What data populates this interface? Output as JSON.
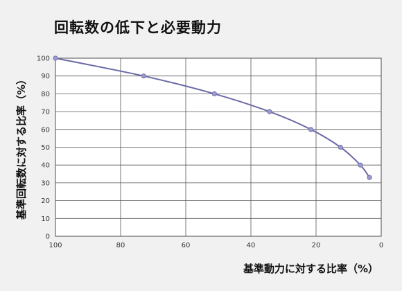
{
  "chart_data": {
    "type": "line",
    "title": "回転数の低下と必要動力",
    "xlabel": "基準動力に対する比率（%）",
    "ylabel": "基準回転数に対する比率（%）",
    "xlim": [
      100,
      0
    ],
    "ylim": [
      0,
      100
    ],
    "x_reversed": true,
    "x_ticks": [
      100,
      80,
      60,
      40,
      20,
      0
    ],
    "y_ticks": [
      0,
      10,
      20,
      30,
      40,
      50,
      60,
      70,
      80,
      90,
      100
    ],
    "grid": true,
    "series": [
      {
        "color": "#6b6aa6",
        "points": [
          {
            "x": 100,
            "y": 100
          },
          {
            "x": 72.9,
            "y": 90
          },
          {
            "x": 51.2,
            "y": 80
          },
          {
            "x": 34.3,
            "y": 70
          },
          {
            "x": 21.6,
            "y": 60
          },
          {
            "x": 12.5,
            "y": 50
          },
          {
            "x": 6.4,
            "y": 40
          },
          {
            "x": 3.6,
            "y": 33
          }
        ]
      }
    ]
  }
}
